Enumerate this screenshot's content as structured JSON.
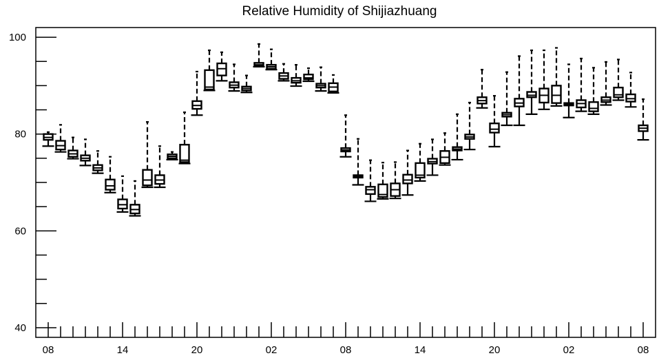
{
  "chart_data": {
    "type": "box",
    "title": "Relative Humidity of Shijiazhuang",
    "xlabel": "",
    "ylabel": "",
    "ylim": [
      38,
      102
    ],
    "y_ticks": [
      40,
      60,
      80,
      100
    ],
    "x_tick_labels": [
      "08",
      "14",
      "20",
      "02",
      "08",
      "14",
      "20",
      "02",
      "08"
    ],
    "x_label_positions": [
      0,
      6,
      12,
      18,
      24,
      30,
      36,
      42,
      48
    ],
    "grid": false,
    "series": [
      {
        "values": [
          {
            "x": 0,
            "whisker_low": 77.5,
            "q1": 78.8,
            "median": 79.3,
            "q3": 80.0,
            "whisker_high": 80.4
          },
          {
            "x": 1,
            "whisker_low": 76.3,
            "q1": 76.8,
            "median": 77.6,
            "q3": 78.6,
            "whisker_high": 81.9
          },
          {
            "x": 2,
            "whisker_low": 74.9,
            "q1": 75.3,
            "median": 75.9,
            "q3": 76.6,
            "whisker_high": 79.3
          },
          {
            "x": 3,
            "whisker_low": 73.5,
            "q1": 74.5,
            "median": 75.0,
            "q3": 75.6,
            "whisker_high": 78.9
          },
          {
            "x": 4,
            "whisker_low": 71.9,
            "q1": 72.5,
            "median": 73.0,
            "q3": 73.6,
            "whisker_high": 76.5
          },
          {
            "x": 5,
            "whisker_low": 67.9,
            "q1": 68.5,
            "median": 69.3,
            "q3": 70.6,
            "whisker_high": 75.3
          },
          {
            "x": 6,
            "whisker_low": 63.9,
            "q1": 64.6,
            "median": 65.4,
            "q3": 66.5,
            "whisker_high": 71.3
          },
          {
            "x": 7,
            "whisker_low": 63.1,
            "q1": 63.6,
            "median": 64.4,
            "q3": 65.4,
            "whisker_high": 70.3
          },
          {
            "x": 8,
            "whisker_low": 69.0,
            "q1": 69.4,
            "median": 70.5,
            "q3": 72.6,
            "whisker_high": 82.5
          },
          {
            "x": 9,
            "whisker_low": 69.0,
            "q1": 69.7,
            "median": 70.5,
            "q3": 71.5,
            "whisker_high": 77.5
          },
          {
            "x": 10,
            "whisker_low": 74.7,
            "q1": 75.0,
            "median": 75.4,
            "q3": 75.8,
            "whisker_high": 76.3
          },
          {
            "x": 11,
            "whisker_low": 73.9,
            "q1": 74.2,
            "median": 74.6,
            "q3": 77.8,
            "whisker_high": 84.5
          },
          {
            "x": 12,
            "whisker_low": 83.9,
            "q1": 85.2,
            "median": 85.9,
            "q3": 86.8,
            "whisker_high": 92.9
          },
          {
            "x": 13,
            "whisker_low": 89.0,
            "q1": 89.2,
            "median": 89.7,
            "q3": 93.2,
            "whisker_high": 97.3
          },
          {
            "x": 14,
            "whisker_low": 91.0,
            "q1": 92.1,
            "median": 93.5,
            "q3": 94.6,
            "whisker_high": 96.9
          },
          {
            "x": 15,
            "whisker_low": 88.9,
            "q1": 89.6,
            "median": 90.1,
            "q3": 90.7,
            "whisker_high": 94.4
          },
          {
            "x": 16,
            "whisker_low": 88.6,
            "q1": 89.0,
            "median": 89.4,
            "q3": 89.8,
            "whisker_high": 92.1
          },
          {
            "x": 17,
            "whisker_low": 93.9,
            "q1": 94.1,
            "median": 94.3,
            "q3": 94.7,
            "whisker_high": 98.6
          },
          {
            "x": 18,
            "whisker_low": 93.3,
            "q1": 93.5,
            "median": 93.9,
            "q3": 94.3,
            "whisker_high": 97.5
          },
          {
            "x": 19,
            "whisker_low": 91.0,
            "q1": 91.4,
            "median": 92.0,
            "q3": 92.6,
            "whisker_high": 94.5
          },
          {
            "x": 20,
            "whisker_low": 89.9,
            "q1": 90.6,
            "median": 91.0,
            "q3": 91.6,
            "whisker_high": 94.3
          },
          {
            "x": 21,
            "whisker_low": 90.9,
            "q1": 91.3,
            "median": 91.6,
            "q3": 92.3,
            "whisker_high": 93.6
          },
          {
            "x": 22,
            "whisker_low": 88.9,
            "q1": 89.6,
            "median": 90.0,
            "q3": 90.4,
            "whisker_high": 93.8
          },
          {
            "x": 23,
            "whisker_low": 88.5,
            "q1": 88.8,
            "median": 89.7,
            "q3": 90.5,
            "whisker_high": 92.2
          },
          {
            "x": 24,
            "whisker_low": 75.3,
            "q1": 76.4,
            "median": 76.7,
            "q3": 77.1,
            "whisker_high": 83.9
          },
          {
            "x": 25,
            "whisker_low": 69.5,
            "q1": 71.0,
            "median": 71.2,
            "q3": 71.5,
            "whisker_high": 79.0
          },
          {
            "x": 26,
            "whisker_low": 66.1,
            "q1": 67.6,
            "median": 68.5,
            "q3": 69.1,
            "whisker_high": 74.6
          },
          {
            "x": 27,
            "whisker_low": 66.6,
            "q1": 67.0,
            "median": 67.5,
            "q3": 69.6,
            "whisker_high": 74.1
          },
          {
            "x": 28,
            "whisker_low": 66.7,
            "q1": 67.2,
            "median": 68.5,
            "q3": 69.8,
            "whisker_high": 74.2
          },
          {
            "x": 29,
            "whisker_low": 67.4,
            "q1": 69.8,
            "median": 70.5,
            "q3": 71.6,
            "whisker_high": 76.6
          },
          {
            "x": 30,
            "whisker_low": 70.3,
            "q1": 71.0,
            "median": 71.5,
            "q3": 74.0,
            "whisker_high": 78.0
          },
          {
            "x": 31,
            "whisker_low": 71.5,
            "q1": 73.9,
            "median": 74.3,
            "q3": 74.9,
            "whisker_high": 78.9
          },
          {
            "x": 32,
            "whisker_low": 73.6,
            "q1": 74.0,
            "median": 75.2,
            "q3": 76.5,
            "whisker_high": 80.2
          },
          {
            "x": 33,
            "whisker_low": 74.7,
            "q1": 76.6,
            "median": 76.9,
            "q3": 77.3,
            "whisker_high": 84.1
          },
          {
            "x": 34,
            "whisker_low": 76.8,
            "q1": 79.0,
            "median": 79.4,
            "q3": 79.9,
            "whisker_high": 86.5
          },
          {
            "x": 35,
            "whisker_low": 85.4,
            "q1": 86.3,
            "median": 86.9,
            "q3": 87.6,
            "whisker_high": 93.3
          },
          {
            "x": 36,
            "whisker_low": 77.4,
            "q1": 80.3,
            "median": 81.0,
            "q3": 82.2,
            "whisker_high": 87.9
          },
          {
            "x": 37,
            "whisker_low": 81.8,
            "q1": 83.6,
            "median": 84.0,
            "q3": 84.4,
            "whisker_high": 92.8
          },
          {
            "x": 38,
            "whisker_low": 81.8,
            "q1": 85.7,
            "median": 86.4,
            "q3": 87.3,
            "whisker_high": 96.1
          },
          {
            "x": 39,
            "whisker_low": 84.1,
            "q1": 87.6,
            "median": 88.0,
            "q3": 88.7,
            "whisker_high": 97.3
          },
          {
            "x": 40,
            "whisker_low": 85.1,
            "q1": 86.5,
            "median": 88.0,
            "q3": 89.4,
            "whisker_high": 97.3
          },
          {
            "x": 41,
            "whisker_low": 85.8,
            "q1": 86.4,
            "median": 88.0,
            "q3": 90.0,
            "whisker_high": 97.8
          },
          {
            "x": 42,
            "whisker_low": 83.4,
            "q1": 85.9,
            "median": 86.2,
            "q3": 86.4,
            "whisker_high": 94.4
          },
          {
            "x": 43,
            "whisker_low": 84.7,
            "q1": 85.5,
            "median": 86.3,
            "q3": 87.0,
            "whisker_high": 95.6
          },
          {
            "x": 44,
            "whisker_low": 84.1,
            "q1": 84.7,
            "median": 85.3,
            "q3": 86.6,
            "whisker_high": 93.7
          },
          {
            "x": 45,
            "whisker_low": 86.0,
            "q1": 86.6,
            "median": 87.0,
            "q3": 87.6,
            "whisker_high": 94.9
          },
          {
            "x": 46,
            "whisker_low": 87.0,
            "q1": 87.6,
            "median": 88.1,
            "q3": 89.6,
            "whisker_high": 95.4
          },
          {
            "x": 47,
            "whisker_low": 85.6,
            "q1": 86.7,
            "median": 87.3,
            "q3": 88.2,
            "whisker_high": 92.7
          },
          {
            "x": 48,
            "whisker_low": 78.8,
            "q1": 80.6,
            "median": 81.2,
            "q3": 81.8,
            "whisker_high": 87.2
          }
        ]
      }
    ]
  },
  "colors": {
    "axis": "#000000",
    "box_stroke": "#000000",
    "background": "#ffffff"
  }
}
